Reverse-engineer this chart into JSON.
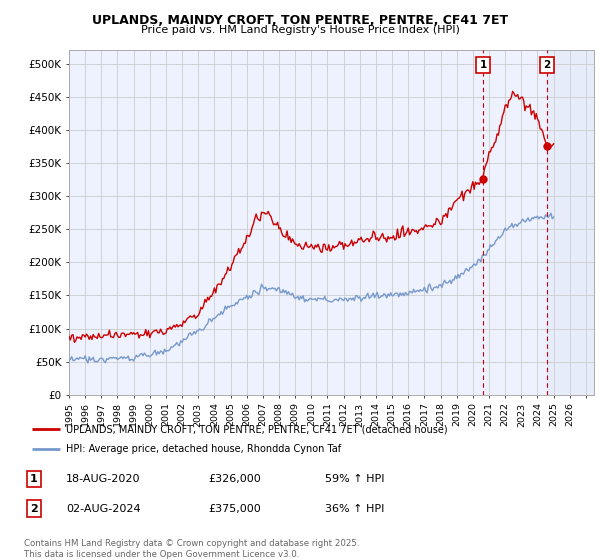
{
  "title": "UPLANDS, MAINDY CROFT, TON PENTRE, PENTRE, CF41 7ET",
  "subtitle": "Price paid vs. HM Land Registry's House Price Index (HPI)",
  "ylim": [
    0,
    520000
  ],
  "yticks": [
    0,
    50000,
    100000,
    150000,
    200000,
    250000,
    300000,
    350000,
    400000,
    450000,
    500000
  ],
  "yticklabels": [
    "£0",
    "£50K",
    "£100K",
    "£150K",
    "£200K",
    "£250K",
    "£300K",
    "£350K",
    "£400K",
    "£450K",
    "£500K"
  ],
  "xlim_start": 1995.0,
  "xlim_end": 2027.5,
  "xticks": [
    1995,
    1996,
    1997,
    1998,
    1999,
    2000,
    2001,
    2002,
    2003,
    2004,
    2005,
    2006,
    2007,
    2008,
    2009,
    2010,
    2011,
    2012,
    2013,
    2014,
    2015,
    2016,
    2017,
    2018,
    2019,
    2020,
    2021,
    2022,
    2023,
    2024,
    2025,
    2026,
    2027
  ],
  "red_line_color": "#cc0000",
  "blue_line_color": "#7799cc",
  "grid_color": "#cccccc",
  "bg_color": "#eef2ff",
  "legend_label_red": "UPLANDS, MAINDY CROFT, TON PENTRE, PENTRE, CF41 7ET (detached house)",
  "legend_label_blue": "HPI: Average price, detached house, Rhondda Cynon Taf",
  "marker1_x": 2020.63,
  "marker1_y": 326000,
  "marker2_x": 2024.59,
  "marker2_y": 375000,
  "shaded_region_start": 2024.59,
  "shaded_region_end": 2027.5,
  "footer": "Contains HM Land Registry data © Crown copyright and database right 2025.\nThis data is licensed under the Open Government Licence v3.0."
}
